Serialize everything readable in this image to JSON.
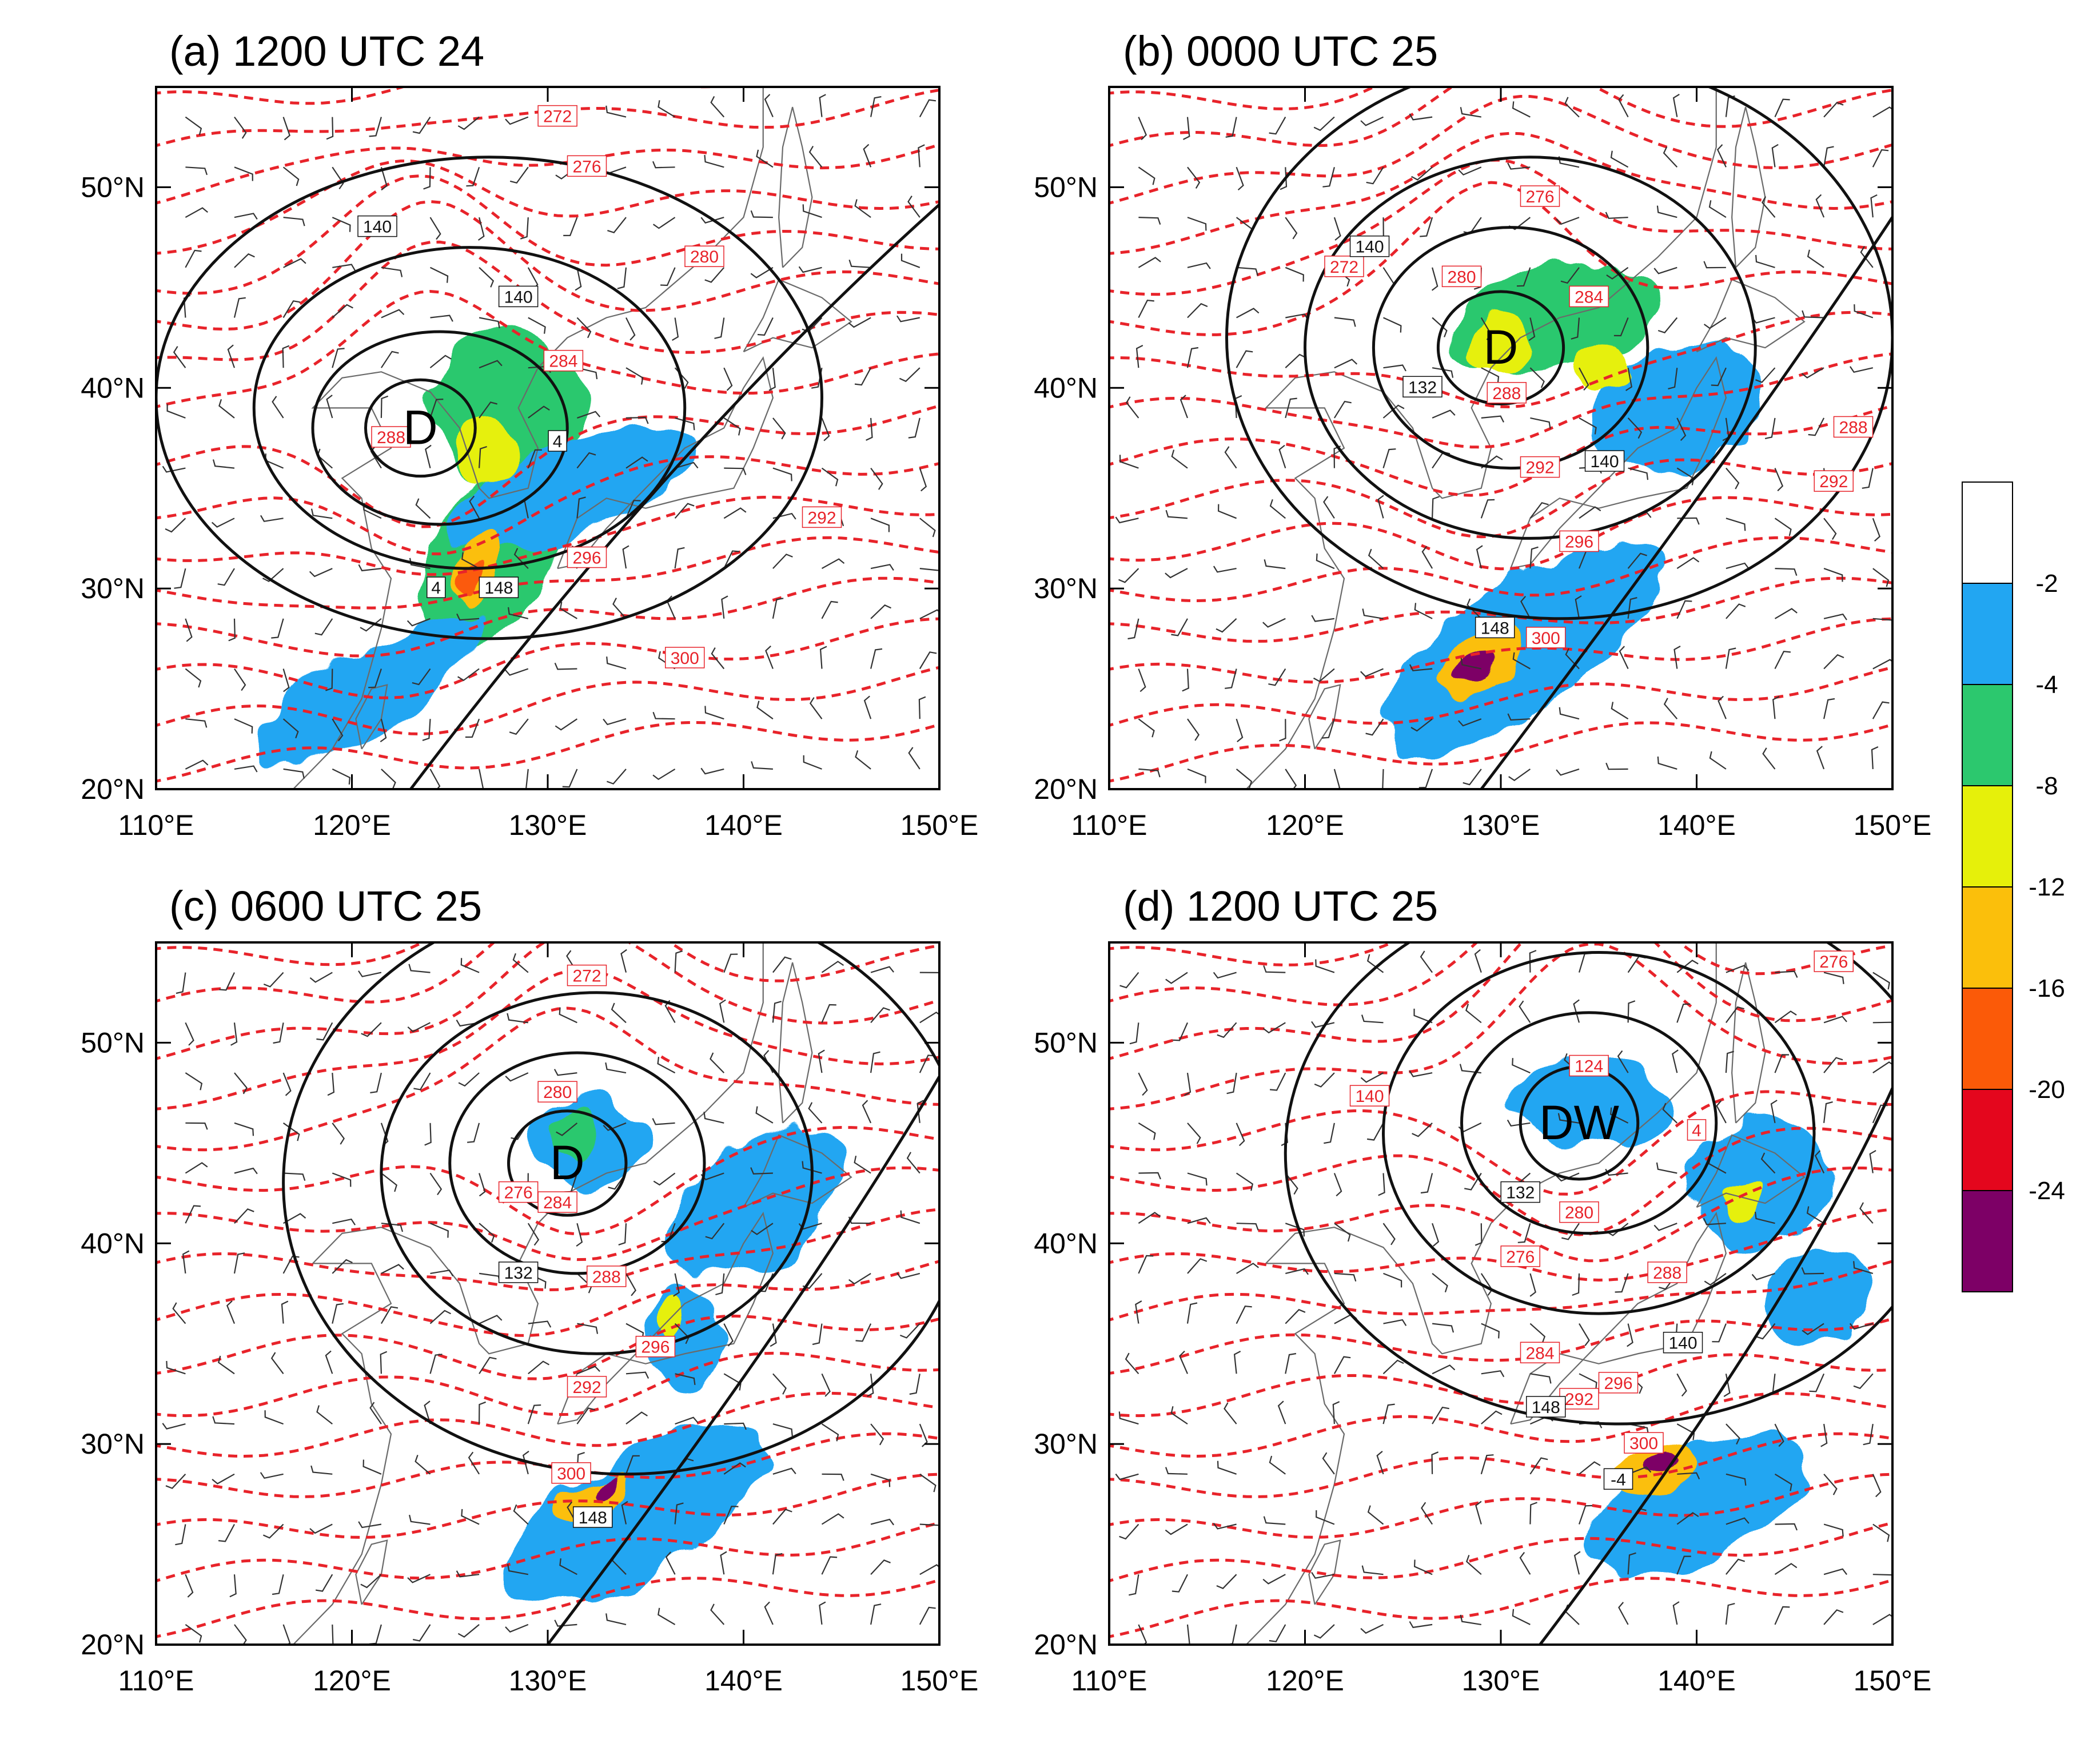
{
  "panels": [
    {
      "title": "(a) 1200 UTC 24",
      "center_label": "D",
      "center": [
        123.5,
        38.0
      ],
      "theta_labels": [
        {
          "text": "272",
          "lon": 130.5,
          "lat": 53.5
        },
        {
          "text": "276",
          "lon": 132.0,
          "lat": 51.0
        },
        {
          "text": "280",
          "lon": 138.0,
          "lat": 46.5
        },
        {
          "text": "284",
          "lon": 130.8,
          "lat": 41.3
        },
        {
          "text": "288",
          "lon": 122.0,
          "lat": 37.5
        },
        {
          "text": "292",
          "lon": 144.0,
          "lat": 33.5
        },
        {
          "text": "296",
          "lon": 132.0,
          "lat": 31.5
        },
        {
          "text": "300",
          "lon": 137.0,
          "lat": 26.5
        }
      ],
      "height_labels": [
        {
          "text": "140",
          "lon": 121.3,
          "lat": 48.0
        },
        {
          "text": "140",
          "lon": 128.5,
          "lat": 44.5
        },
        {
          "text": "4",
          "lon": 130.5,
          "lat": 37.3
        },
        {
          "text": "4",
          "lon": 124.3,
          "lat": 30.0
        },
        {
          "text": "148",
          "lon": 127.5,
          "lat": 30.0
        }
      ],
      "height_contours": [
        {
          "c": [
            123.5,
            38.0
          ],
          "r": [
            2.8,
            2.4
          ]
        },
        {
          "c": [
            124.5,
            38.0
          ],
          "r": [
            6.5,
            4.8
          ]
        },
        {
          "c": [
            126.0,
            39.0
          ],
          "r": [
            11.0,
            8.0
          ]
        },
        {
          "c": [
            127.0,
            39.5
          ],
          "r": [
            17.0,
            12.0
          ]
        }
      ],
      "shading": [
        {
          "lon": 128.0,
          "lat": 39.0,
          "rx": 3.8,
          "ry": 4.2,
          "rot": -15,
          "v": -8
        },
        {
          "lon": 127.0,
          "lat": 31.5,
          "rx": 3.0,
          "ry": 5.0,
          "rot": 25,
          "v": -8
        },
        {
          "lon": 131.0,
          "lat": 35.0,
          "rx": 6.5,
          "ry": 2.2,
          "rot": -20,
          "v": -4
        },
        {
          "lon": 121.0,
          "lat": 25.0,
          "rx": 6.5,
          "ry": 2.0,
          "rot": -30,
          "v": -4
        },
        {
          "lon": 127.0,
          "lat": 37.0,
          "rx": 1.6,
          "ry": 1.8,
          "rot": 0,
          "v": -12
        },
        {
          "lon": 126.5,
          "lat": 31.0,
          "rx": 0.9,
          "ry": 2.0,
          "rot": 15,
          "v": -16
        },
        {
          "lon": 126.2,
          "lat": 30.6,
          "rx": 0.45,
          "ry": 0.9,
          "rot": 15,
          "v": -20
        }
      ]
    },
    {
      "title": "(b) 0000 UTC 25",
      "center_label": "D",
      "center": [
        130.0,
        42.0
      ],
      "theta_labels": [
        {
          "text": "276",
          "lon": 132.0,
          "lat": 49.5
        },
        {
          "text": "272",
          "lon": 122.0,
          "lat": 46.0
        },
        {
          "text": "280",
          "lon": 128.0,
          "lat": 45.5
        },
        {
          "text": "284",
          "lon": 134.5,
          "lat": 44.5
        },
        {
          "text": "288",
          "lon": 130.3,
          "lat": 39.7
        },
        {
          "text": "288",
          "lon": 148.0,
          "lat": 38.0
        },
        {
          "text": "292",
          "lon": 147.0,
          "lat": 35.3
        },
        {
          "text": "292",
          "lon": 132.0,
          "lat": 36.0
        },
        {
          "text": "296",
          "lon": 134.0,
          "lat": 32.3
        },
        {
          "text": "300",
          "lon": 132.3,
          "lat": 27.5
        }
      ],
      "height_labels": [
        {
          "text": "140",
          "lon": 123.3,
          "lat": 47.0
        },
        {
          "text": "132",
          "lon": 126.0,
          "lat": 40.0
        },
        {
          "text": "140",
          "lon": 135.3,
          "lat": 36.3
        },
        {
          "text": "148",
          "lon": 129.7,
          "lat": 28.0
        }
      ],
      "height_contours": [
        {
          "c": [
            130.0,
            42.0
          ],
          "r": [
            3.2,
            2.8
          ]
        },
        {
          "c": [
            130.5,
            42.0
          ],
          "r": [
            7.0,
            6.0
          ]
        },
        {
          "c": [
            131.5,
            42.0
          ],
          "r": [
            11.5,
            9.5
          ]
        },
        {
          "c": [
            133.0,
            42.5
          ],
          "r": [
            17.0,
            14.0
          ]
        }
      ],
      "shading": [
        {
          "lon": 133.0,
          "lat": 43.5,
          "rx": 5.5,
          "ry": 2.6,
          "rot": -10,
          "v": -8
        },
        {
          "lon": 139.0,
          "lat": 39.0,
          "rx": 4.5,
          "ry": 3.0,
          "rot": -20,
          "v": -4
        },
        {
          "lon": 131.0,
          "lat": 27.0,
          "rx": 8.5,
          "ry": 3.2,
          "rot": -35,
          "v": -4
        },
        {
          "lon": 130.0,
          "lat": 42.2,
          "rx": 1.4,
          "ry": 1.4,
          "rot": 0,
          "v": -12
        },
        {
          "lon": 135.5,
          "lat": 41.0,
          "rx": 1.6,
          "ry": 1.2,
          "rot": -20,
          "v": -12
        },
        {
          "lon": 129.0,
          "lat": 26.5,
          "rx": 2.4,
          "ry": 1.3,
          "rot": -35,
          "v": -16
        },
        {
          "lon": 128.8,
          "lat": 26.2,
          "rx": 1.1,
          "ry": 0.6,
          "rot": -35,
          "v": -24
        }
      ]
    },
    {
      "title": "(c) 0600 UTC 25",
      "center_label": "D",
      "center": [
        131.0,
        44.0
      ],
      "theta_labels": [
        {
          "text": "272",
          "lon": 132.0,
          "lat": 53.3
        },
        {
          "text": "280",
          "lon": 130.5,
          "lat": 47.5
        },
        {
          "text": "276",
          "lon": 128.5,
          "lat": 42.5
        },
        {
          "text": "284",
          "lon": 130.5,
          "lat": 42.0
        },
        {
          "text": "288",
          "lon": 133.0,
          "lat": 38.3
        },
        {
          "text": "296",
          "lon": 135.5,
          "lat": 34.8
        },
        {
          "text": "292",
          "lon": 132.0,
          "lat": 32.8
        },
        {
          "text": "300",
          "lon": 131.2,
          "lat": 28.5
        }
      ],
      "height_labels": [
        {
          "text": "132",
          "lon": 128.5,
          "lat": 38.5
        },
        {
          "text": "148",
          "lon": 132.3,
          "lat": 26.3
        }
      ],
      "height_contours": [
        {
          "c": [
            131.0,
            44.0
          ],
          "r": [
            3.0,
            2.6
          ]
        },
        {
          "c": [
            131.5,
            44.0
          ],
          "r": [
            6.5,
            5.5
          ]
        },
        {
          "c": [
            132.5,
            43.5
          ],
          "r": [
            11.0,
            9.0
          ]
        },
        {
          "c": [
            134.0,
            43.0
          ],
          "r": [
            17.5,
            14.5
          ]
        }
      ],
      "shading": [
        {
          "lon": 132.0,
          "lat": 45.0,
          "rx": 3.0,
          "ry": 2.2,
          "rot": 0,
          "v": -4
        },
        {
          "lon": 140.5,
          "lat": 42.0,
          "rx": 5.0,
          "ry": 3.0,
          "rot": -30,
          "v": -4
        },
        {
          "lon": 137.0,
          "lat": 35.5,
          "rx": 2.0,
          "ry": 2.6,
          "rot": 0,
          "v": -4
        },
        {
          "lon": 134.5,
          "lat": 26.5,
          "rx": 7.5,
          "ry": 3.0,
          "rot": -30,
          "v": -4
        },
        {
          "lon": 131.5,
          "lat": 45.3,
          "rx": 1.0,
          "ry": 1.3,
          "rot": 0,
          "v": -8
        },
        {
          "lon": 136.5,
          "lat": 36.3,
          "rx": 0.9,
          "ry": 1.1,
          "rot": 0,
          "v": -12
        },
        {
          "lon": 132.5,
          "lat": 27.3,
          "rx": 1.8,
          "ry": 1.0,
          "rot": -30,
          "v": -16
        },
        {
          "lon": 133.0,
          "lat": 28.0,
          "rx": 0.7,
          "ry": 0.5,
          "rot": -30,
          "v": -24
        }
      ]
    },
    {
      "title": "(d) 1200 UTC 25",
      "center_label": "DW",
      "center": [
        134.0,
        46.0
      ],
      "theta_labels": [
        {
          "text": "276",
          "lon": 147.0,
          "lat": 54.0
        },
        {
          "text": "140",
          "lon": 123.3,
          "lat": 47.3
        },
        {
          "text": "124",
          "lon": 134.5,
          "lat": 48.8
        },
        {
          "text": "4",
          "lon": 140.0,
          "lat": 45.6
        },
        {
          "text": "280",
          "lon": 134.0,
          "lat": 41.5
        },
        {
          "text": "276",
          "lon": 131.0,
          "lat": 39.3
        },
        {
          "text": "288",
          "lon": 138.5,
          "lat": 38.5
        },
        {
          "text": "284",
          "lon": 132.0,
          "lat": 34.5
        },
        {
          "text": "296",
          "lon": 136.0,
          "lat": 33.0
        },
        {
          "text": "292",
          "lon": 134.0,
          "lat": 32.2
        },
        {
          "text": "300",
          "lon": 137.3,
          "lat": 30.0
        }
      ],
      "height_labels": [
        {
          "text": "132",
          "lon": 131.0,
          "lat": 42.5
        },
        {
          "text": "140",
          "lon": 139.3,
          "lat": 35.0
        },
        {
          "text": "148",
          "lon": 132.3,
          "lat": 31.8
        },
        {
          "text": "-4",
          "lon": 136.0,
          "lat": 28.2
        }
      ],
      "height_contours": [
        {
          "c": [
            134.0,
            46.0
          ],
          "r": [
            3.0,
            2.8
          ]
        },
        {
          "c": [
            134.5,
            46.0
          ],
          "r": [
            6.5,
            5.5
          ]
        },
        {
          "c": [
            135.0,
            45.5
          ],
          "r": [
            11.0,
            9.0
          ]
        },
        {
          "c": [
            136.0,
            44.5
          ],
          "r": [
            17.0,
            13.5
          ]
        }
      ],
      "shading": [
        {
          "lon": 134.5,
          "lat": 47.0,
          "rx": 4.0,
          "ry": 2.2,
          "rot": 0,
          "v": -4
        },
        {
          "lon": 143.5,
          "lat": 43.0,
          "rx": 3.6,
          "ry": 3.2,
          "rot": -20,
          "v": -4
        },
        {
          "lon": 146.5,
          "lat": 37.5,
          "rx": 3.0,
          "ry": 2.4,
          "rot": -30,
          "v": -4
        },
        {
          "lon": 140.0,
          "lat": 27.0,
          "rx": 6.0,
          "ry": 2.8,
          "rot": -25,
          "v": -4
        },
        {
          "lon": 142.3,
          "lat": 42.5,
          "rx": 1.0,
          "ry": 1.0,
          "rot": 0,
          "v": -12
        },
        {
          "lon": 137.5,
          "lat": 28.5,
          "rx": 2.0,
          "ry": 1.3,
          "rot": -25,
          "v": -16
        },
        {
          "lon": 138.0,
          "lat": 29.0,
          "rx": 0.8,
          "ry": 0.5,
          "rot": -25,
          "v": -24
        }
      ]
    }
  ],
  "axes": {
    "lon_ticks": [
      "110°E",
      "120°E",
      "130°E",
      "140°E",
      "150°E"
    ],
    "lat_ticks": [
      "20°N",
      "30°N",
      "40°N",
      "50°N"
    ],
    "lon_range": [
      110,
      150
    ],
    "lat_range": [
      20,
      55
    ]
  },
  "colorbar": {
    "labels": [
      "-2",
      "-4",
      "-8",
      "-12",
      "-16",
      "-20",
      "-24"
    ],
    "colors": [
      "#ffffff",
      "#22a6f2",
      "#2cc86e",
      "#e6f00a",
      "#fbbf0b",
      "#fb5a08",
      "#e4061d",
      "#7d0066"
    ]
  },
  "colors": {
    "theta_contour": "#e8232a",
    "height_contour": "#111111",
    "coastline": "#6a6a6a"
  }
}
